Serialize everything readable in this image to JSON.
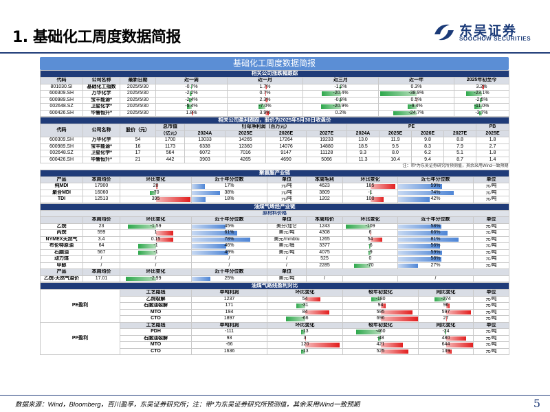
{
  "title": "1. 基础化工周度数据简报",
  "logo": {
    "cn": "东吴证券",
    "en": "SOOCHOW SECURITIES"
  },
  "banner": "基础化工周度数据简报",
  "footer": "数据来源：Wind，Bloomberg，百川盈孚，东吴证券研究所；注：带*为东吴证券研究所预测值，其余采用Wind一致预期",
  "page_number": "5",
  "colors": {
    "navy": "#1f3b78",
    "banner": "#5b8ed5",
    "up": "#e21f1f",
    "down": "#2ea84c",
    "pct": "#4f86d6"
  },
  "s1": {
    "title": "相关公司涨跌幅跟踪",
    "headers": [
      "代码",
      "公司名称",
      "最新日期",
      "近一周",
      "近一月",
      "近三月",
      "近一年",
      "2025年初至今"
    ],
    "rows": [
      {
        "code": "801030.SI",
        "name": "基础化工指数",
        "date": "2025/5/30",
        "w": "-0.7%",
        "m": "1.7%",
        "q": "-1.2%",
        "y": "0.3%",
        "ytd": "3.2%"
      },
      {
        "code": "600309.SH",
        "name": "万华化学",
        "date": "2025/5/30",
        "w": "-2.2%",
        "m": "0.7%",
        "q": "-20.4%",
        "y": "-38.9%",
        "ytd": "-23.1%"
      },
      {
        "code": "600989.SH",
        "name": "宝丰能源*",
        "date": "2025/5/30",
        "w": "-2.4%",
        "m": "2.3%",
        "q": "-0.9%",
        "y": "0.5%",
        "ytd": "-2.5%"
      },
      {
        "code": "002648.SZ",
        "name": "卫星化学*",
        "date": "2025/5/30",
        "w": "-5.4%",
        "m": "-7.0%",
        "q": "-20.9%",
        "y": "-9.4%",
        "ytd": "-11.0%"
      },
      {
        "code": "600426.SH",
        "name": "华鲁恒升*",
        "date": "2025/5/30",
        "w": "1.8%",
        "m": "3.9%",
        "q": "0.2%",
        "y": "-24.7%",
        "ytd": "-3.7%"
      }
    ]
  },
  "s2": {
    "title": "相关公司盈利跟踪，股价为2025年5月30日收盘价",
    "g1": [
      "代码",
      "公司名称",
      "股价（元）",
      "总市值",
      "归母净利润（百万元）",
      "PE",
      "PB"
    ],
    "cap_unit": "（亿元）",
    "g2": [
      "2024A",
      "2025E",
      "2026E",
      "2027E",
      "2024A",
      "2025E",
      "2026E",
      "2027E",
      "2025E"
    ],
    "rows": [
      [
        "600309.SH",
        "万华化学",
        "54",
        "1700",
        "13033",
        "14265",
        "17264",
        "19233",
        "13.0",
        "11.9",
        "9.8",
        "8.8",
        "1.8"
      ],
      [
        "600989.SH",
        "宝丰能源*",
        "16",
        "1173",
        "6338",
        "12360",
        "14076",
        "14880",
        "18.5",
        "9.5",
        "8.3",
        "7.9",
        "2.7"
      ],
      [
        "002648.SZ",
        "卫星化学*",
        "17",
        "564",
        "6072",
        "7016",
        "9147",
        "11128",
        "9.3",
        "8.0",
        "6.2",
        "5.1",
        "1.8"
      ],
      [
        "600426.SH",
        "华鲁恒升*",
        "21",
        "442",
        "3903",
        "4265",
        "4690",
        "5066",
        "11.3",
        "10.4",
        "9.4",
        "8.7",
        "1.4"
      ]
    ],
    "note": "注：带*为东吴证券研究所预测值，其余采用Wind一致预期"
  },
  "s3": {
    "title": "聚氨酯产业链",
    "headers": [
      "产品",
      "本周均价",
      "环比变化",
      "近十年分位数",
      "单位",
      "本周毛利",
      "环比变化",
      "近七年分位数",
      "单位"
    ],
    "rows": [
      {
        "p": "纯MDI",
        "price": "17900",
        "chg": "20",
        "chgv": 20,
        "pct": "17%",
        "pctv": 17,
        "unit": "元/吨",
        "gp": "4623",
        "gchg": "185",
        "gchgv": 185,
        "gpct": "59%",
        "gpctv": 59,
        "gunit": "元/吨"
      },
      {
        "p": "聚合MDI",
        "price": "16060",
        "chg": "-70",
        "chgv": -70,
        "pct": "38%",
        "pctv": 38,
        "unit": "元/吨",
        "gp": "3809",
        "gchg": "-1",
        "gchgv": -1,
        "gpct": "74%",
        "gpctv": 74,
        "gunit": "元/吨"
      },
      {
        "p": "TDI",
        "price": "12513",
        "chg": "395",
        "chgv": 395,
        "pct": "18%",
        "pctv": 18,
        "unit": "元/吨",
        "gp": "1202",
        "gchg": "100",
        "gchgv": 100,
        "gpct": "42%",
        "gpctv": 42,
        "gunit": "元/吨"
      }
    ]
  },
  "s4": {
    "title": "油煤气烯烃产业链",
    "sub": "原材料价格",
    "headers": [
      "",
      "本周均价",
      "环比变化",
      "近十年分位数",
      "单位",
      "本周均价",
      "环比变化",
      "近十年分位数",
      "单位"
    ],
    "rows": [
      {
        "p": "乙烷",
        "price": "23",
        "chg": "-1.59",
        "chgv": -1.59,
        "pct": "45%",
        "pctv": 45,
        "unit": "美分/加仑",
        "p2": "1243",
        "chg2": "-109",
        "chg2v": -109,
        "pct2": "58%",
        "pct2v": 58,
        "unit2": "元/吨"
      },
      {
        "p": "丙烷",
        "price": "599",
        "chg": "1",
        "chgv": 1,
        "pct": "61%",
        "pctv": 61,
        "unit": "美元/吨",
        "p2": "4308",
        "chg2": "6",
        "chg2v": 6,
        "pct2": "66%",
        "pct2v": 66,
        "unit2": "元/吨"
      },
      {
        "p": "NYMEX天然气",
        "price": "3.4",
        "chg": "0.15",
        "chgv": 0.15,
        "pct": "78%",
        "pctv": 78,
        "unit": "美元/mmbtu",
        "p2": "1265",
        "chg2": "54",
        "chg2v": 54,
        "pct2": "81%",
        "pct2v": 81,
        "unit2": "元/吨"
      },
      {
        "p": "布伦特原油",
        "price": "64",
        "chg": "-1",
        "chgv": -1,
        "pct": "46%",
        "pctv": 46,
        "unit": "美元/桶",
        "p2": "3377",
        "chg2": "-6",
        "chg2v": -6,
        "pct2": "56%",
        "pct2v": 56,
        "unit2": "元/吨"
      },
      {
        "p": "石脑油",
        "price": "567",
        "chg": "-1",
        "chgv": -1,
        "pct": "49%",
        "pctv": 49,
        "unit": "美元/吨",
        "p2": "4075",
        "chg2": "-9",
        "chg2v": -9,
        "pct2": "59%",
        "pct2v": 59,
        "unit2": "元/吨"
      },
      {
        "p": "动力煤",
        "price": "/",
        "chg": "/",
        "chgv": 0,
        "pct": "/",
        "pctv": 0,
        "unit": "/",
        "p2": "525",
        "chg2": "0",
        "chg2v": 0,
        "pct2": "58%",
        "pct2v": 58,
        "unit2": "元/吨"
      },
      {
        "p": "甲醇",
        "price": "/",
        "chg": "/",
        "chgv": 0,
        "pct": "/",
        "pctv": 0,
        "unit": "/",
        "p2": "2285",
        "chg2": "-70",
        "chg2v": -70,
        "pct2": "27%",
        "pct2v": 27,
        "unit2": "元/吨"
      }
    ],
    "prod_headers": [
      "产品",
      "本周均价",
      "环比变化",
      "近十年分位数",
      "单位"
    ],
    "prod_row": {
      "p": "乙烷-天然气溢价",
      "price": "17.01",
      "chg": "-2.99",
      "chgv": -2.99,
      "pct": "25%",
      "pctv": 25,
      "unit": "美元/吨",
      "slash1": "/",
      "slash2": "/"
    }
  },
  "s5": {
    "title": "油煤气路线盈利对比",
    "headers": [
      "工艺路线",
      "单吨利润",
      "环比变化",
      "较年初变化",
      "同比变化",
      "单位"
    ],
    "groups": [
      {
        "label": "PE盈利",
        "rows": [
          {
            "r": "乙烷裂解",
            "p": "1237",
            "c": "54",
            "cv": 54,
            "y": "-180",
            "yv": -180,
            "o": "-274",
            "ov": -274,
            "u": "元/吨"
          },
          {
            "r": "石脑油裂解",
            "p": "171",
            "c": "-31",
            "cv": -31,
            "y": "94",
            "yv": 94,
            "o": "96",
            "ov": 96,
            "u": "元/吨"
          },
          {
            "r": "MTO",
            "p": "194",
            "c": "84",
            "cv": 84,
            "y": "595",
            "yv": 595,
            "o": "597",
            "ov": 597,
            "u": "元/吨"
          },
          {
            "r": "CTO",
            "p": "1897",
            "c": "-66",
            "cv": -66,
            "y": "696",
            "yv": 696,
            "o": "27",
            "ov": 27,
            "u": "元/吨"
          }
        ]
      },
      {
        "label": "PP盈利",
        "rows": [
          {
            "r": "PDH",
            "p": "-111",
            "c": "-13",
            "cv": -13,
            "y": "-460",
            "yv": -460,
            "o": "-24",
            "ov": -24,
            "u": "元/吨"
          },
          {
            "r": "石脑油裂解",
            "p": "93",
            "c": "3",
            "cv": 3,
            "y": "-48",
            "yv": -48,
            "o": "480",
            "ov": 480,
            "u": "元/吨"
          },
          {
            "r": "MTO",
            "p": "-66",
            "c": "120",
            "cv": 120,
            "y": "421",
            "yv": 421,
            "o": "644",
            "ov": 644,
            "u": "元/吨"
          },
          {
            "r": "CTO",
            "p": "1636",
            "c": "-13",
            "cv": -13,
            "y": "525",
            "yv": 525,
            "o": "139",
            "ov": 139,
            "u": "元/吨"
          }
        ]
      }
    ]
  }
}
